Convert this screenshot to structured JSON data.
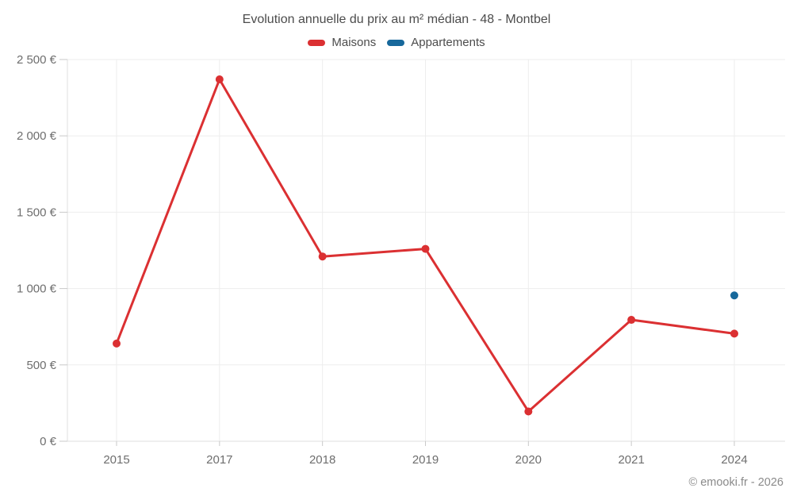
{
  "chart_data": {
    "type": "line",
    "title": "Evolution annuelle du prix au m² médian - 48 - Montbel",
    "categories": [
      "2015",
      "2017",
      "2018",
      "2019",
      "2020",
      "2021",
      "2024"
    ],
    "series": [
      {
        "name": "Maisons",
        "color": "#db3032",
        "values": [
          640,
          2370,
          1210,
          1260,
          195,
          795,
          705
        ]
      },
      {
        "name": "Appartements",
        "color": "#17689b",
        "values": [
          null,
          null,
          null,
          null,
          null,
          null,
          955
        ]
      }
    ],
    "xlabel": "",
    "ylabel": "",
    "ylim": [
      0,
      2500
    ],
    "yticks": [
      {
        "value": 0,
        "label": "0 €"
      },
      {
        "value": 500,
        "label": "500 €"
      },
      {
        "value": 1000,
        "label": "1 000 €"
      },
      {
        "value": 1500,
        "label": "1 500 €"
      },
      {
        "value": 2000,
        "label": "2 000 €"
      },
      {
        "value": 2500,
        "label": "2 500 €"
      }
    ],
    "grid": true,
    "legend_position": "top"
  },
  "colors": {
    "background": "#ffffff",
    "title_text": "#4c4c4c",
    "axis_text": "#6e6e6e",
    "grid": "#ededed",
    "axis_line": "#dfdfdf",
    "tick": "#c9c9c9",
    "copyright_text": "#8a8a8a"
  },
  "footer": {
    "copyright": "© emooki.fr - 2026"
  }
}
